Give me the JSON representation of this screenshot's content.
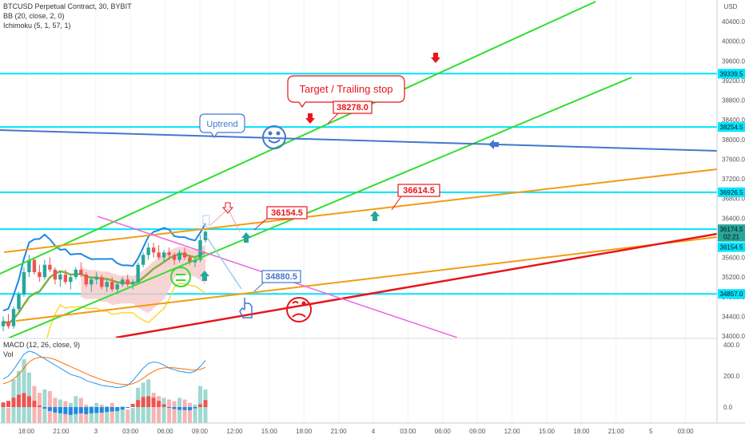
{
  "header": {
    "symbol_line": "BTCUSD Perpetual Contract, 30, BYBIT",
    "bb_line": "BB (20, close, 2, 0)",
    "ichimoku_line": "Ichimoku (5, 1, 57, 1)",
    "currency": "USD"
  },
  "price_axis": {
    "ticks": [
      "40400.0",
      "40000.0",
      "39600.0",
      "39200.0",
      "38800.0",
      "38400.0",
      "38000.0",
      "37600.0",
      "37200.0",
      "36800.0",
      "36400.0",
      "36000.0",
      "35600.0",
      "35200.0",
      "34800.0",
      "34400.0",
      "34000.0"
    ],
    "tags": [
      {
        "label": "39339.5",
        "price": 39339.5,
        "color": "#00e5ff"
      },
      {
        "label": "38254.5",
        "price": 38254.5,
        "color": "#00e5ff"
      },
      {
        "label": "36926.5",
        "price": 36926.5,
        "color": "#00e5ff"
      },
      {
        "label": "36174.5",
        "price": 36174.5,
        "color": "#26a69a"
      },
      {
        "label": "02:21",
        "price": 36020,
        "color": "#26a69a"
      },
      {
        "label": "36154.5",
        "price": 35810,
        "color": "#00e5ff"
      },
      {
        "label": "34857.0",
        "price": 34857,
        "color": "#00e5ff"
      }
    ]
  },
  "macd_axis": {
    "ticks": [
      "400.0",
      "200.0",
      "0.0"
    ]
  },
  "time_axis": {
    "ticks": [
      "18:00",
      "21:00",
      "3",
      "03:00",
      "06:00",
      "09:00",
      "12:00",
      "15:00",
      "18:00",
      "21:00",
      "4",
      "03:00",
      "06:00",
      "09:00",
      "12:00",
      "15:00",
      "18:00",
      "21:00",
      "5",
      "03:00"
    ]
  },
  "panes": {
    "macd_label": "MACD (12, 26, close, 9)",
    "vol_label": "Vol"
  },
  "annotations": {
    "target": "Target / Trailing stop",
    "uptrend": "Uptrend",
    "label_38278": "38278.0",
    "label_36614": "36614.5",
    "label_36154": "36154.5",
    "label_34880": "34880.5"
  },
  "colors": {
    "up": "#26a69a",
    "down": "#ef5350",
    "green_line": "#33dd33",
    "blue_line": "#4477cc",
    "orange_line": "#f39c12",
    "red_line": "#e8151b",
    "magenta_line": "#ee66dd",
    "cyan_line": "#00e5ff"
  },
  "chart_data": {
    "type": "candlestick",
    "symbol": "BTCUSD Perpetual Contract",
    "interval": "30",
    "exchange": "BYBIT",
    "ylim": [
      33900,
      40650
    ],
    "horizontal_levels": [
      39339.5,
      38254.5,
      36926.5,
      36174.5,
      34857.0
    ],
    "candles": [
      [
        34200,
        34400,
        34100,
        34300
      ],
      [
        34300,
        34450,
        34150,
        34200
      ],
      [
        34200,
        34600,
        34150,
        34550
      ],
      [
        34550,
        34900,
        34500,
        34850
      ],
      [
        34850,
        35400,
        34800,
        35300
      ],
      [
        35300,
        35650,
        35200,
        35550
      ],
      [
        35550,
        35600,
        35250,
        35300
      ],
      [
        35300,
        35450,
        35100,
        35200
      ],
      [
        35200,
        35550,
        35150,
        35450
      ],
      [
        35450,
        35600,
        35300,
        35350
      ],
      [
        35350,
        35400,
        35050,
        35150
      ],
      [
        35150,
        35300,
        35000,
        35250
      ],
      [
        35250,
        35350,
        35050,
        35100
      ],
      [
        35100,
        35250,
        34950,
        35200
      ],
      [
        35200,
        35400,
        35150,
        35350
      ],
      [
        35350,
        35500,
        35200,
        35250
      ],
      [
        35250,
        35300,
        35000,
        35050
      ],
      [
        35050,
        35200,
        34900,
        35150
      ],
      [
        35150,
        35300,
        35050,
        35200
      ],
      [
        35200,
        35250,
        34950,
        35000
      ],
      [
        35000,
        35150,
        34900,
        35100
      ],
      [
        35100,
        35200,
        34900,
        34950
      ],
      [
        34950,
        35100,
        34850,
        35050
      ],
      [
        35050,
        35200,
        35000,
        35150
      ],
      [
        35150,
        35250,
        35000,
        35050
      ],
      [
        35050,
        35150,
        34950,
        35100
      ],
      [
        35100,
        35500,
        35050,
        35450
      ],
      [
        35450,
        35700,
        35400,
        35650
      ],
      [
        35650,
        35900,
        35550,
        35800
      ],
      [
        35800,
        35900,
        35600,
        35700
      ],
      [
        35700,
        35850,
        35550,
        35600
      ],
      [
        35600,
        35750,
        35500,
        35700
      ],
      [
        35700,
        35800,
        35550,
        35650
      ],
      [
        35650,
        35700,
        35450,
        35550
      ],
      [
        35550,
        35750,
        35500,
        35700
      ],
      [
        35700,
        35800,
        35550,
        35600
      ],
      [
        35600,
        35650,
        35450,
        35500
      ],
      [
        35500,
        35600,
        35400,
        35550
      ],
      [
        35550,
        36050,
        35500,
        35950
      ],
      [
        35950,
        36150,
        35900,
        36120
      ]
    ],
    "volume": [
      120,
      90,
      260,
      310,
      380,
      300,
      220,
      180,
      200,
      190,
      150,
      140,
      130,
      120,
      160,
      150,
      110,
      100,
      120,
      110,
      100,
      120,
      90,
      100,
      80,
      90,
      210,
      240,
      260,
      180,
      160,
      150,
      140,
      130,
      150,
      140,
      120,
      110,
      220,
      200
    ],
    "volume_up": [
      true,
      false,
      true,
      true,
      true,
      true,
      false,
      false,
      true,
      false,
      false,
      true,
      false,
      true,
      true,
      false,
      false,
      true,
      true,
      false,
      true,
      false,
      true,
      true,
      false,
      true,
      true,
      true,
      true,
      false,
      false,
      true,
      false,
      false,
      true,
      false,
      false,
      true,
      true,
      true
    ],
    "macd": [
      180,
      200,
      240,
      290,
      340,
      360,
      350,
      330,
      310,
      290,
      270,
      250,
      230,
      210,
      200,
      190,
      170,
      160,
      150,
      140,
      135,
      130,
      125,
      130,
      140,
      170,
      210,
      250,
      280,
      290,
      285,
      270,
      250,
      240,
      230,
      225,
      220,
      230,
      260,
      300
    ],
    "signal": [
      150,
      160,
      180,
      210,
      250,
      290,
      310,
      320,
      320,
      315,
      305,
      290,
      275,
      260,
      245,
      230,
      215,
      200,
      188,
      176,
      166,
      158,
      150,
      146,
      144,
      150,
      165,
      185,
      210,
      230,
      245,
      252,
      254,
      252,
      248,
      244,
      240,
      238,
      242,
      255
    ],
    "histogram": [
      30,
      40,
      60,
      80,
      90,
      70,
      40,
      10,
      -10,
      -25,
      -35,
      -40,
      -45,
      -50,
      -45,
      -40,
      -45,
      -40,
      -38,
      -36,
      -31,
      -28,
      -25,
      -16,
      -4,
      20,
      45,
      65,
      70,
      60,
      40,
      18,
      -4,
      -12,
      -18,
      -19,
      -20,
      -8,
      18,
      45
    ]
  }
}
